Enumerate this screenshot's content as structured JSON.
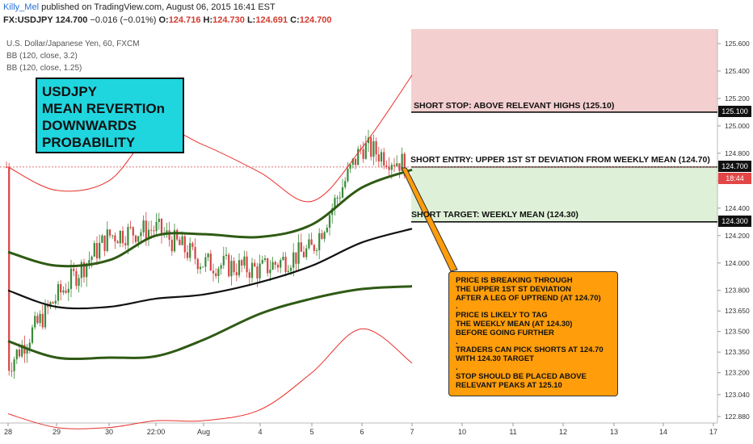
{
  "header": {
    "author": "Killy_Mel",
    "published": "published on TradingView.com, August 06, 2015 16:41 EST",
    "symbol": "FX:USDJPY",
    "last": "124.700",
    "change": "−0.016 (−0.01%)",
    "o_label": "O:",
    "o": "124.716",
    "h_label": "H:",
    "h": "124.730",
    "l_label": "L:",
    "l": "124.691",
    "c_label": "C:",
    "c": "124.700"
  },
  "studies": [
    "U.S. Dollar/Japanese Yen, 60, FXCM",
    "BB (120, close, 3.2)",
    "BB (120, close, 1.25)"
  ],
  "title_box": [
    "USDJPY",
    "MEAN REVERTIOn",
    "DOWNWARDS",
    "PROBABILITY"
  ],
  "zones": {
    "stop_label": "SHORT STOP: ABOVE RELEVANT HIGHS (125.10)",
    "entry_label": "SHORT ENTRY: UPPER 1ST ST DEVIATION FROM WEEKLY MEAN (124.70)",
    "target_label": "SHORT TARGET: WEEKLY MEAN (124.30)"
  },
  "note_lines": [
    "PRICE IS BREAKING THROUGH",
    "THE UPPER 1ST ST DEVIATION",
    "AFTER A LEG OF UPTREND (AT 124.70)",
    ".",
    "PRICE IS LIKELY TO TAG",
    "THE WEEKLY MEAN (AT 124.30)",
    "BEFORE GOING FURTHER",
    ".",
    "TRADERS CAN PICK SHORTS AT 124.70",
    "WITH 124.30 TARGET",
    ".",
    "STOP SHOULD BE PLACED ABOVE",
    "RELEVANT PEAKS AT 125.10"
  ],
  "price_tags": {
    "stop": "125.100",
    "entry": "124.700",
    "countdown": "18:44",
    "target": "124.300"
  },
  "colors": {
    "stop_zone": "#f4cfcf",
    "target_zone": "#dff0d8",
    "outer_band": "#e8302a",
    "inner_band": "#2f5a14",
    "mean": "#111111",
    "up_candle": "#3a8a3a",
    "down_candle": "#d64545",
    "note_box": "#ff9d0a",
    "title_box": "#1fd6df"
  },
  "chart_data": {
    "type": "line",
    "title": "U.S. Dollar/Japanese Yen, 60, FXCM",
    "y_ticks": [
      "125.600",
      "125.400",
      "125.200",
      "125.000",
      "124.800",
      "124.600",
      "124.400",
      "124.200",
      "124.000",
      "123.800",
      "123.650",
      "123.500",
      "123.350",
      "123.200",
      "123.040",
      "122.880"
    ],
    "x_ticks": [
      "28",
      "29",
      "30",
      "22:00",
      "Aug",
      "4",
      "5",
      "6",
      "7",
      "10",
      "11",
      "12",
      "13",
      "14",
      "17"
    ],
    "ylim": [
      122.85,
      125.66
    ],
    "levels": {
      "short_stop": 125.1,
      "short_entry": 124.7,
      "short_target": 124.3,
      "last_price": 124.7
    },
    "series": [
      {
        "name": "BB (120, close, 3.2) upper",
        "x": [
          "28",
          "29",
          "30",
          "22:00",
          "Aug",
          "4",
          "5",
          "6",
          "7"
        ],
        "values": [
          124.7,
          124.53,
          124.6,
          124.97,
          124.86,
          124.66,
          124.45,
          124.84,
          125.37
        ]
      },
      {
        "name": "BB (120, close, 1.25) upper",
        "x": [
          "28",
          "29",
          "30",
          "22:00",
          "Aug",
          "4",
          "5",
          "6",
          "7"
        ],
        "values": [
          124.08,
          123.98,
          124.02,
          124.2,
          124.21,
          124.19,
          124.28,
          124.55,
          124.68
        ]
      },
      {
        "name": "BB basis",
        "x": [
          "28",
          "29",
          "30",
          "22:00",
          "Aug",
          "4",
          "5",
          "6",
          "7"
        ],
        "values": [
          123.8,
          123.68,
          123.68,
          123.74,
          123.77,
          123.86,
          123.98,
          124.15,
          124.25
        ]
      },
      {
        "name": "BB (120, close, 1.25) lower",
        "x": [
          "28",
          "29",
          "30",
          "22:00",
          "Aug",
          "4",
          "5",
          "6",
          "7"
        ],
        "values": [
          123.43,
          123.31,
          123.31,
          123.32,
          123.44,
          123.63,
          123.74,
          123.81,
          123.83
        ]
      },
      {
        "name": "BB (120, close, 3.2) lower",
        "x": [
          "28",
          "29",
          "30",
          "22:00",
          "Aug",
          "4",
          "5",
          "6",
          "7"
        ],
        "values": [
          122.9,
          122.8,
          122.8,
          122.85,
          122.85,
          122.93,
          123.2,
          123.52,
          123.27
        ]
      },
      {
        "name": "USDJPY close",
        "x": [
          "28",
          "29",
          "30",
          "22:00",
          "Aug",
          "4",
          "5",
          "6",
          "7"
        ],
        "values": [
          123.25,
          123.75,
          124.2,
          124.25,
          124.0,
          123.95,
          124.1,
          124.85,
          124.7
        ]
      }
    ]
  }
}
